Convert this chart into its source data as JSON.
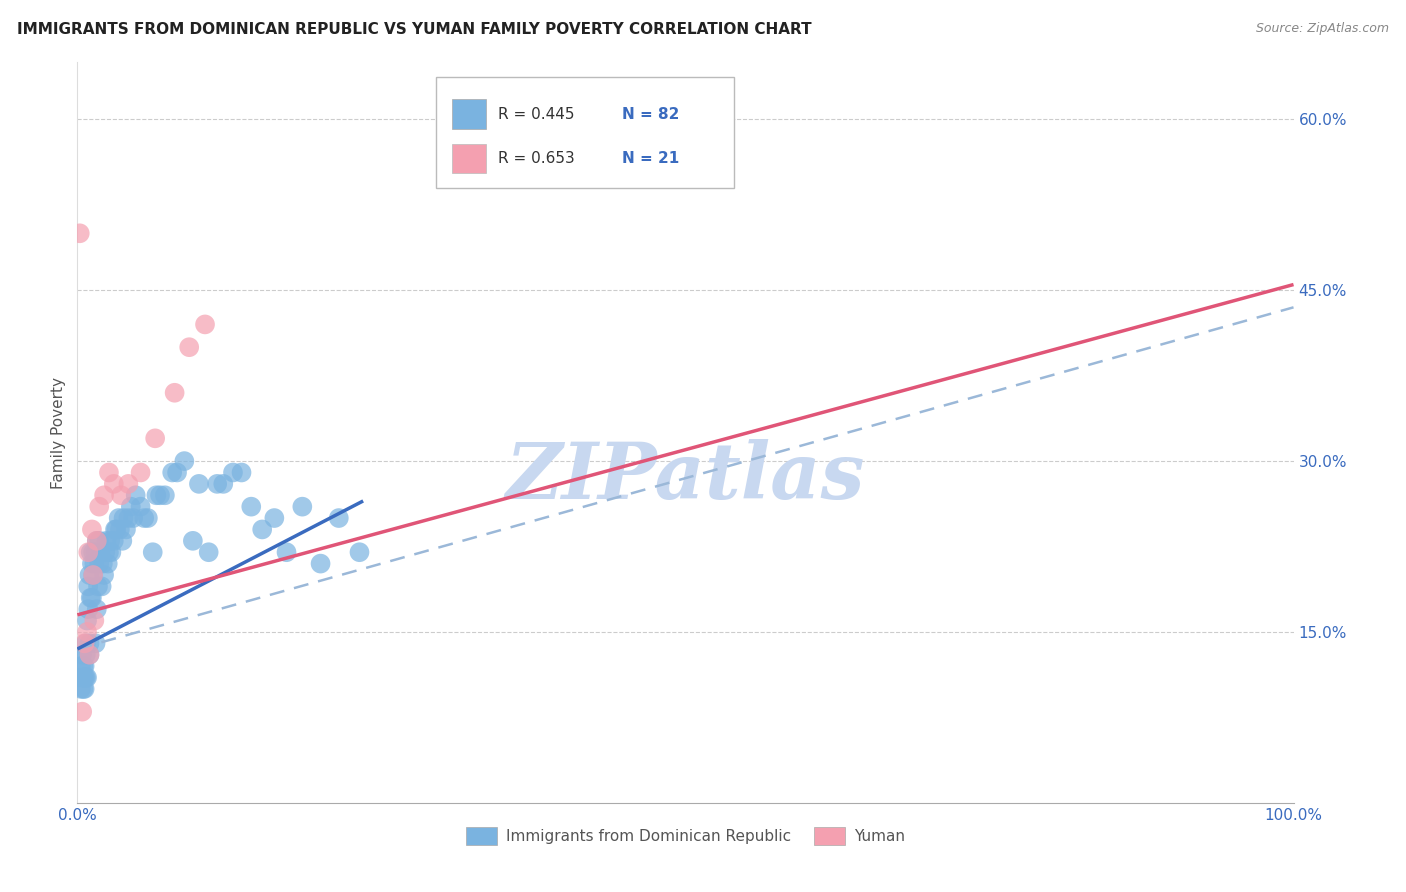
{
  "title": "IMMIGRANTS FROM DOMINICAN REPUBLIC VS YUMAN FAMILY POVERTY CORRELATION CHART",
  "source": "Source: ZipAtlas.com",
  "ylabel": "Family Poverty",
  "xlim": [
    0.0,
    1.0
  ],
  "ylim": [
    0.0,
    0.65
  ],
  "xticks": [
    0.0,
    0.25,
    0.5,
    0.75,
    1.0
  ],
  "xticklabels": [
    "0.0%",
    "",
    "",
    "",
    "100.0%"
  ],
  "yticks": [
    0.0,
    0.15,
    0.3,
    0.45,
    0.6
  ],
  "yticklabels": [
    "",
    "15.0%",
    "30.0%",
    "45.0%",
    "60.0%"
  ],
  "grid_color": "#cccccc",
  "background_color": "#ffffff",
  "blue_color": "#7ab3e0",
  "pink_color": "#f4a0b0",
  "blue_line_color": "#3a6bbf",
  "pink_line_color": "#e05577",
  "dashed_line_color": "#9bb8d8",
  "watermark_color": "#c8d8f0",
  "legend_R1": "R = 0.445",
  "legend_N1": "N = 82",
  "legend_R2": "R = 0.653",
  "legend_N2": "N = 21",
  "blue_scatter_x": [
    0.002,
    0.003,
    0.003,
    0.004,
    0.004,
    0.005,
    0.005,
    0.005,
    0.006,
    0.006,
    0.006,
    0.007,
    0.007,
    0.007,
    0.008,
    0.008,
    0.009,
    0.009,
    0.01,
    0.01,
    0.01,
    0.011,
    0.011,
    0.012,
    0.012,
    0.013,
    0.013,
    0.014,
    0.015,
    0.015,
    0.016,
    0.016,
    0.017,
    0.018,
    0.018,
    0.019,
    0.02,
    0.021,
    0.022,
    0.023,
    0.024,
    0.025,
    0.026,
    0.027,
    0.028,
    0.03,
    0.031,
    0.032,
    0.034,
    0.035,
    0.037,
    0.038,
    0.04,
    0.042,
    0.044,
    0.046,
    0.048,
    0.052,
    0.055,
    0.058,
    0.062,
    0.065,
    0.068,
    0.072,
    0.078,
    0.082,
    0.088,
    0.095,
    0.1,
    0.108,
    0.115,
    0.12,
    0.128,
    0.135,
    0.143,
    0.152,
    0.162,
    0.172,
    0.185,
    0.2,
    0.215,
    0.232
  ],
  "blue_scatter_y": [
    0.11,
    0.1,
    0.12,
    0.11,
    0.13,
    0.1,
    0.11,
    0.12,
    0.1,
    0.11,
    0.12,
    0.11,
    0.13,
    0.14,
    0.11,
    0.16,
    0.17,
    0.19,
    0.13,
    0.14,
    0.2,
    0.18,
    0.22,
    0.18,
    0.21,
    0.2,
    0.22,
    0.21,
    0.14,
    0.22,
    0.17,
    0.23,
    0.19,
    0.21,
    0.23,
    0.22,
    0.19,
    0.21,
    0.2,
    0.22,
    0.23,
    0.21,
    0.22,
    0.23,
    0.22,
    0.23,
    0.24,
    0.24,
    0.25,
    0.24,
    0.23,
    0.25,
    0.24,
    0.25,
    0.26,
    0.25,
    0.27,
    0.26,
    0.25,
    0.25,
    0.22,
    0.27,
    0.27,
    0.27,
    0.29,
    0.29,
    0.3,
    0.23,
    0.28,
    0.22,
    0.28,
    0.28,
    0.29,
    0.29,
    0.26,
    0.24,
    0.25,
    0.22,
    0.26,
    0.21,
    0.25,
    0.22
  ],
  "pink_scatter_x": [
    0.002,
    0.004,
    0.006,
    0.008,
    0.009,
    0.01,
    0.012,
    0.013,
    0.014,
    0.016,
    0.018,
    0.022,
    0.026,
    0.03,
    0.036,
    0.042,
    0.052,
    0.064,
    0.08,
    0.092,
    0.105
  ],
  "pink_scatter_y": [
    0.5,
    0.08,
    0.14,
    0.15,
    0.22,
    0.13,
    0.24,
    0.2,
    0.16,
    0.23,
    0.26,
    0.27,
    0.29,
    0.28,
    0.27,
    0.28,
    0.29,
    0.32,
    0.36,
    0.4,
    0.42
  ],
  "blue_trendline_x": [
    0.0,
    0.235
  ],
  "blue_trendline_y": [
    0.135,
    0.265
  ],
  "pink_trendline_x": [
    0.0,
    1.0
  ],
  "pink_trendline_y": [
    0.165,
    0.455
  ],
  "dashed_trendline_x": [
    0.0,
    1.0
  ],
  "dashed_trendline_y": [
    0.135,
    0.435
  ]
}
